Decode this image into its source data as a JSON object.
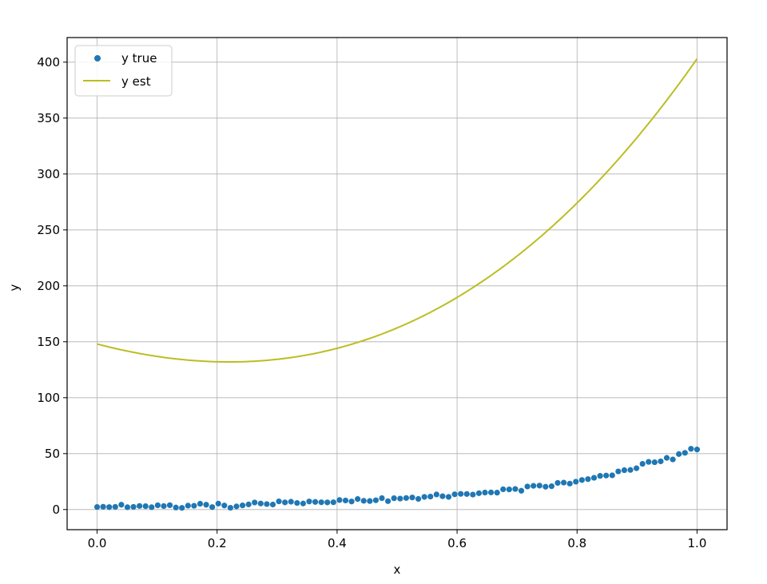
{
  "chart_data": {
    "type": "scatter",
    "xlabel": "x",
    "ylabel": "y",
    "xlim": [
      -0.05,
      1.05
    ],
    "ylim": [
      -18,
      422
    ],
    "xticks": [
      "0.0",
      "0.2",
      "0.4",
      "0.6",
      "0.8",
      "1.0"
    ],
    "yticks": [
      "0",
      "50",
      "100",
      "150",
      "200",
      "250",
      "300",
      "350",
      "400"
    ],
    "grid": true,
    "legend_position": "top-left",
    "series": [
      {
        "name": "y true",
        "kind": "scatter",
        "color": "#1f77b4",
        "x": [
          0.0,
          0.0101,
          0.0202,
          0.0303,
          0.0404,
          0.0505,
          0.0606,
          0.0707,
          0.0808,
          0.0909,
          0.101,
          0.1111,
          0.1212,
          0.1313,
          0.1414,
          0.1515,
          0.1616,
          0.1717,
          0.1818,
          0.1919,
          0.202,
          0.2121,
          0.2222,
          0.2323,
          0.2424,
          0.2525,
          0.2626,
          0.2727,
          0.2828,
          0.2929,
          0.303,
          0.3131,
          0.3232,
          0.3333,
          0.3434,
          0.3535,
          0.3636,
          0.3737,
          0.3838,
          0.3939,
          0.404,
          0.4141,
          0.4242,
          0.4343,
          0.4444,
          0.4545,
          0.4646,
          0.4747,
          0.4848,
          0.4949,
          0.5051,
          0.5152,
          0.5253,
          0.5354,
          0.5455,
          0.5556,
          0.5657,
          0.5758,
          0.5859,
          0.596,
          0.6061,
          0.6162,
          0.6263,
          0.6364,
          0.6465,
          0.6566,
          0.6667,
          0.6768,
          0.6869,
          0.697,
          0.7071,
          0.7172,
          0.7273,
          0.7374,
          0.7475,
          0.7576,
          0.7677,
          0.7778,
          0.7879,
          0.798,
          0.8081,
          0.8182,
          0.8283,
          0.8384,
          0.8485,
          0.8586,
          0.8687,
          0.8788,
          0.8889,
          0.899,
          0.9091,
          0.9192,
          0.9293,
          0.9394,
          0.9495,
          0.9596,
          0.9697,
          0.9798,
          0.9899,
          1.0
        ],
        "y": [
          2.3,
          2.5,
          2.2,
          2.4,
          4.3,
          2.1,
          2.4,
          3.2,
          3.0,
          2.1,
          3.8,
          3.1,
          3.9,
          1.8,
          1.5,
          3.5,
          3.4,
          5.2,
          4.3,
          2.2,
          5.3,
          3.6,
          1.6,
          2.8,
          3.7,
          4.6,
          6.3,
          5.4,
          4.9,
          4.5,
          7.3,
          6.4,
          7.0,
          5.9,
          5.4,
          7.2,
          6.8,
          6.5,
          6.4,
          6.5,
          8.5,
          8.1,
          7.2,
          9.4,
          7.8,
          7.6,
          8.3,
          10.2,
          7.5,
          10.1,
          9.8,
          10.3,
          10.8,
          9.5,
          11.3,
          11.6,
          13.5,
          11.9,
          11.3,
          13.6,
          14.0,
          13.9,
          13.4,
          14.6,
          15.2,
          15.3,
          15.1,
          18.1,
          18.0,
          18.4,
          16.8,
          20.6,
          21.2,
          21.4,
          20.4,
          20.9,
          23.8,
          24.1,
          23.2,
          24.9,
          26.4,
          27.2,
          28.4,
          30.1,
          30.4,
          30.6,
          34.1,
          35.2,
          35.4,
          36.9,
          40.9,
          42.6,
          42.3,
          43.1,
          46.2,
          44.8,
          49.6,
          50.7,
          54.3,
          53.7
        ]
      },
      {
        "name": "y est",
        "kind": "line",
        "color": "#bcbd22",
        "polynomial_coefficients": [
          148,
          -140,
          280,
          115
        ]
      }
    ]
  }
}
